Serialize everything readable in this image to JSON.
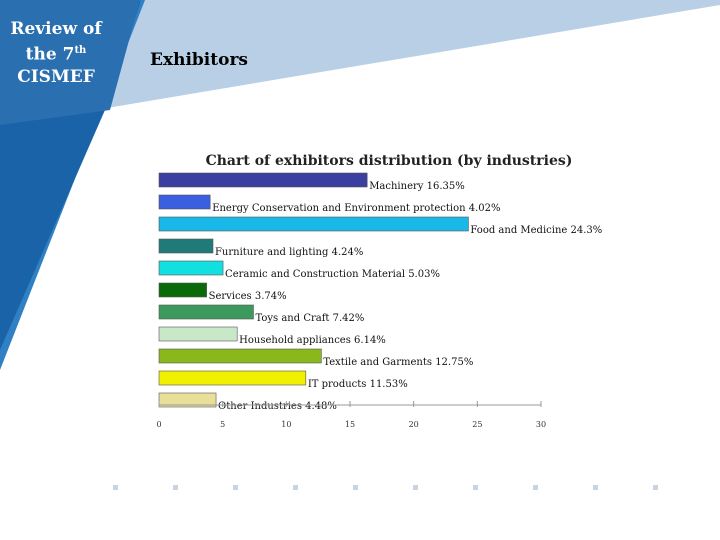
{
  "sidebar": {
    "line1": "Review of",
    "line2_prefix": "the 7",
    "line2_sup": "th",
    "line3": "CISMEF"
  },
  "slide": {
    "title": "Exhibitors"
  },
  "colors": {
    "sidebar_blue": "#1a63a8",
    "band_light": "#b8cfe6",
    "band_mid": "#2f80c4",
    "dot": "#c9d4e3"
  },
  "chart_data": {
    "type": "bar",
    "orientation": "horizontal",
    "title": "Chart of exhibitors distribution (by industries)",
    "xlim": [
      0,
      30
    ],
    "x_ticks": [
      "0",
      "5",
      "10",
      "15",
      "20",
      "25",
      "30"
    ],
    "grid": false,
    "categories": [
      "Machinery 16.35%",
      "Energy Conservation and Environment protection 4.02%",
      "Food and Medicine 24.3%",
      "Furniture and lighting 4.24%",
      "Ceramic and Construction Material 5.03%",
      "Services 3.74%",
      "Toys and Craft 7.42%",
      "Household appliances 6.14%",
      "Textile and Garments 12.75%",
      "IT products 11.53%",
      "Other Industries 4.48%"
    ],
    "values": [
      16.35,
      4.02,
      24.3,
      4.24,
      5.03,
      3.74,
      7.42,
      6.14,
      12.75,
      11.53,
      4.48
    ],
    "colors": [
      "#3b3fa0",
      "#3a5fe0",
      "#18b8e8",
      "#207a78",
      "#12e0e0",
      "#0a6a0a",
      "#3c9a5c",
      "#c8e8c8",
      "#8ab81c",
      "#f0f000",
      "#e8e098"
    ]
  }
}
